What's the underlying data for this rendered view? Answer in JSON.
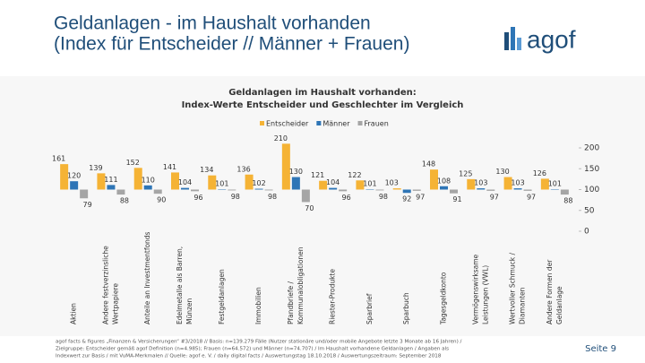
{
  "header": {
    "title_lines": [
      "Geldanlagen - im Haushalt vorhanden",
      "(Index für Entscheider // Männer + Frauen)"
    ],
    "logo": "agof"
  },
  "chart_data": {
    "type": "bar",
    "title_lines": [
      "Geldanlagen im Haushalt vorhanden:",
      "Index-Werte Entscheider und Geschlechter im Vergleich"
    ],
    "categories": [
      [
        "Aktien"
      ],
      [
        "Andere festverzinsliche",
        "Wertpapiere"
      ],
      [
        "Anteile an Investmentfonds"
      ],
      [
        "Edelmetalle als Barren,",
        "Münzen"
      ],
      [
        "Festgeldanlagen"
      ],
      [
        "Immobilien"
      ],
      [
        "Pfandbriefe /",
        "Kommunalobligationen"
      ],
      [
        "Riester-Produkte"
      ],
      [
        "Sparbrief"
      ],
      [
        "Sparbuch"
      ],
      [
        "Tagesgeldkonto"
      ],
      [
        "Vermögenswirksame",
        "Leistungen (VWL)"
      ],
      [
        "Wertvoller Schmuck /",
        "Diamanten"
      ],
      [
        "Andere Formen der",
        "Geldanlage"
      ]
    ],
    "series": [
      {
        "name": "Entscheider",
        "color": "#f5b335",
        "values": [
          161,
          139,
          152,
          141,
          134,
          136,
          210,
          121,
          122,
          103,
          148,
          125,
          130,
          126
        ]
      },
      {
        "name": "Männer",
        "color": "#2e75b6",
        "values": [
          120,
          111,
          110,
          104,
          101,
          102,
          130,
          104,
          101,
          92,
          108,
          103,
          103,
          101
        ]
      },
      {
        "name": "Frauen",
        "color": "#a5a5a5",
        "values": [
          79,
          88,
          90,
          96,
          98,
          98,
          70,
          96,
          98,
          97,
          91,
          97,
          97,
          88
        ]
      }
    ],
    "base": 100,
    "ylim": [
      0,
      200
    ],
    "yticks": [
      0,
      50,
      100,
      150,
      200
    ],
    "legend": "top"
  },
  "footer": {
    "lines": [
      "agof facts & figures „Finanzen & Versicherungen“ #3/2018 // Basis: n=139.279 Fälle (Nutzer stationäre und/oder mobile Angebote letzte 3 Monate ab 16 Jahren) /",
      "Zielgruppe: Entscheider gemäß agof Definition (n=4.985); Frauen (n=64.572) und Männer (n=74.707) / Im Haushalt vorhandene Geldanlagen / Angaben als",
      "Indexwert zur Basis / mit VuMA-Merkmalen // Quelle: agof e. V. / daily digital facts / Auswertungstag 18.10.2018 / Auswertungszeitraum: September 2018"
    ],
    "page": "Seite 9"
  }
}
